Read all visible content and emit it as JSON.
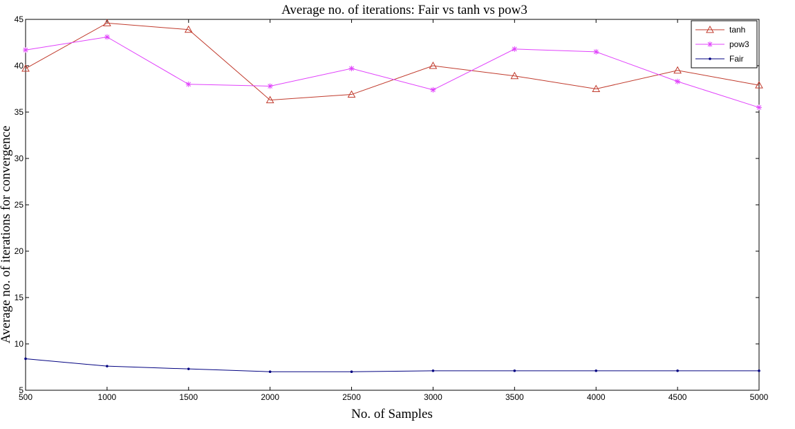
{
  "chart_data": {
    "type": "line",
    "title": "Average no. of iterations: Fair vs tanh vs pow3",
    "xlabel": "No. of Samples",
    "ylabel": "Average no. of iterations for convergence",
    "x": [
      500,
      1000,
      1500,
      2000,
      2500,
      3000,
      3500,
      4000,
      4500,
      5000
    ],
    "xlim": [
      500,
      5000
    ],
    "ylim": [
      5,
      45
    ],
    "xticks": [
      "500",
      "1000",
      "1500",
      "2000",
      "2500",
      "3000",
      "3500",
      "4000",
      "4500",
      "5000"
    ],
    "yticks": [
      "5",
      "10",
      "15",
      "20",
      "25",
      "30",
      "35",
      "40",
      "45"
    ],
    "grid": false,
    "legend_position": "top-right",
    "series": [
      {
        "name": "tanh",
        "marker": "triangle",
        "color": "#c0392b",
        "values": [
          39.7,
          44.6,
          43.9,
          36.3,
          36.9,
          40.0,
          38.9,
          37.5,
          39.5,
          37.9
        ]
      },
      {
        "name": "pow3",
        "marker": "star",
        "color": "#e040fb",
        "values": [
          41.7,
          43.1,
          38.0,
          37.8,
          39.7,
          37.4,
          41.8,
          41.5,
          38.3,
          35.5
        ]
      },
      {
        "name": "Fair",
        "marker": "dot",
        "color": "#000080",
        "values": [
          8.4,
          7.6,
          7.3,
          7.0,
          7.0,
          7.1,
          7.1,
          7.1,
          7.1,
          7.1
        ]
      }
    ]
  }
}
